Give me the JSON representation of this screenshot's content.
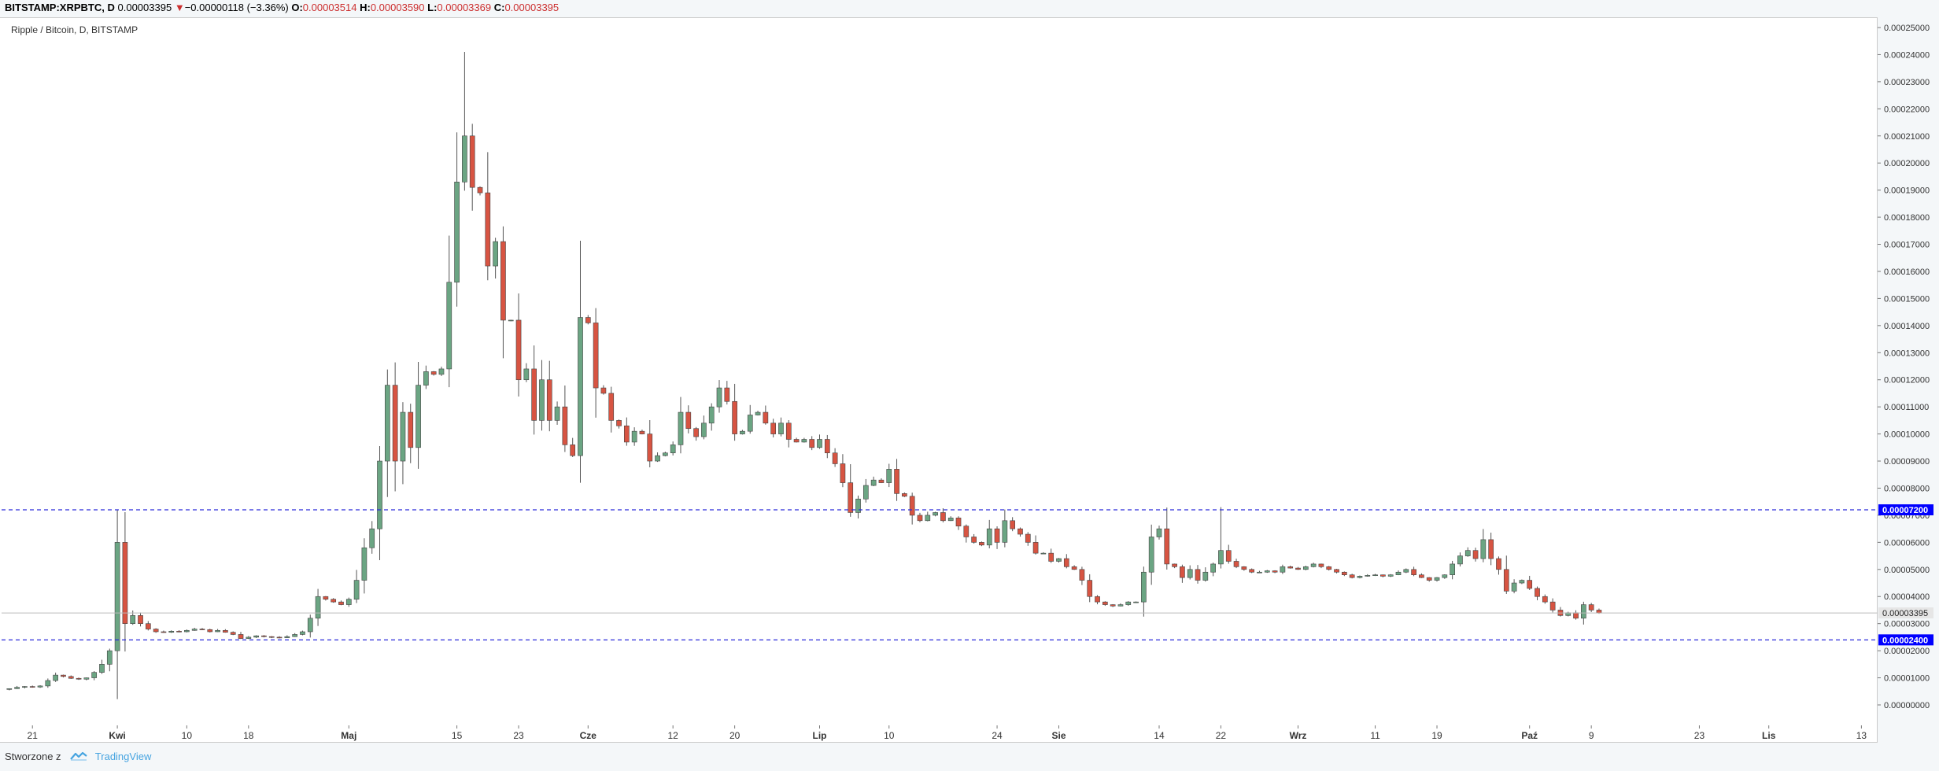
{
  "header": {
    "symbol": "BITSTAMP:XRPBTC, D",
    "last": "0.00003395",
    "change_arrow": "▼",
    "change": "−0.00000118 (−3.36%)",
    "o_label": "O:",
    "o": "0.00003514",
    "h_label": "H:",
    "h": "0.00003590",
    "l_label": "L:",
    "l": "0.00003369",
    "c_label": "C:",
    "c": "0.00003395"
  },
  "legend": "Ripple / Bitcoin, D, BITSTAMP",
  "footer": {
    "prefix": "Stworzone z",
    "brand": "TradingView"
  },
  "colors": {
    "up": "#6ba583",
    "down": "#d75442",
    "hline": "#2a2adb",
    "label_bg": "#0000ff"
  },
  "chart_data": {
    "type": "candlestick",
    "title": "Ripple / Bitcoin, D, BITSTAMP",
    "ylim": [
      0,
      0.00025
    ],
    "yticks": [
      "0.00025000",
      "0.00024000",
      "0.00023000",
      "0.00022000",
      "0.00021000",
      "0.00020000",
      "0.00019000",
      "0.00018000",
      "0.00017000",
      "0.00016000",
      "0.00015000",
      "0.00014000",
      "0.00013000",
      "0.00012000",
      "0.00011000",
      "0.00010000",
      "0.00009000",
      "0.00008000",
      "0.00007000",
      "0.00006000",
      "0.00005000",
      "0.00004000",
      "0.00003000",
      "0.00002000",
      "0.00001000",
      "0.00000000"
    ],
    "xticks": [
      {
        "label": "21",
        "day": 3
      },
      {
        "label": "Kwi",
        "day": 14
      },
      {
        "label": "10",
        "day": 23
      },
      {
        "label": "18",
        "day": 31
      },
      {
        "label": "Maj",
        "day": 44
      },
      {
        "label": "15",
        "day": 58
      },
      {
        "label": "23",
        "day": 66
      },
      {
        "label": "Cze",
        "day": 75
      },
      {
        "label": "12",
        "day": 86
      },
      {
        "label": "20",
        "day": 94
      },
      {
        "label": "Lip",
        "day": 105
      },
      {
        "label": "10",
        "day": 114
      },
      {
        "label": "24",
        "day": 128
      },
      {
        "label": "Sie",
        "day": 136
      },
      {
        "label": "14",
        "day": 149
      },
      {
        "label": "22",
        "day": 157
      },
      {
        "label": "Wrz",
        "day": 167
      },
      {
        "label": "11",
        "day": 177
      },
      {
        "label": "19",
        "day": 185
      },
      {
        "label": "Paź",
        "day": 197
      },
      {
        "label": "9",
        "day": 205
      },
      {
        "label": "23",
        "day": 219
      },
      {
        "label": "Lis",
        "day": 228
      },
      {
        "label": "13",
        "day": 240
      }
    ],
    "x_day_range": [
      -1,
      242
    ],
    "hlines": [
      {
        "value": 7.2e-05,
        "label": "0.00007200"
      },
      {
        "value": 2.4e-05,
        "label": "0.00002400"
      }
    ],
    "last_price": {
      "value": 3.395e-05,
      "label": "0.00003395"
    },
    "close": [
      6e-06,
      6.5e-06,
      6.8e-06,
      6.6e-06,
      7e-06,
      9e-06,
      1.1e-05,
      1.05e-05,
      9.8e-06,
      9.5e-06,
      1e-05,
      1.2e-05,
      1.5e-05,
      2e-05,
      6e-05,
      3e-05,
      3.3e-05,
      3e-05,
      2.8e-05,
      2.7e-05,
      2.68e-05,
      2.72e-05,
      2.7e-05,
      2.75e-05,
      2.8e-05,
      2.78e-05,
      2.7e-05,
      2.75e-05,
      2.68e-05,
      2.6e-05,
      2.45e-05,
      2.5e-05,
      2.55e-05,
      2.52e-05,
      2.5e-05,
      2.48e-05,
      2.52e-05,
      2.6e-05,
      2.7e-05,
      3.2e-05,
      4e-05,
      3.9e-05,
      3.8e-05,
      3.7e-05,
      3.9e-05,
      4.6e-05,
      5.8e-05,
      6.5e-05,
      9e-05,
      0.000118,
      9e-05,
      0.000108,
      9.5e-05,
      0.000118,
      0.000123,
      0.000122,
      0.000124,
      0.000156,
      0.000193,
      0.00021,
      0.000191,
      0.000189,
      0.000162,
      0.000171,
      0.000142,
      0.000142,
      0.00012,
      0.000124,
      0.000105,
      0.00012,
      0.000105,
      0.00011,
      9.6e-05,
      9.2e-05,
      0.000143,
      0.000141,
      0.000117,
      0.000115,
      0.000105,
      0.000103,
      9.7e-05,
      0.000101,
      0.0001,
      9e-05,
      9.2e-05,
      9.3e-05,
      9.6e-05,
      0.000108,
      0.000102,
      9.9e-05,
      0.000104,
      0.00011,
      0.000117,
      0.000112,
      0.0001,
      0.000101,
      0.000107,
      0.000108,
      0.000104,
      0.0001,
      0.000104,
      9.8e-05,
      9.7e-05,
      9.8e-05,
      9.5e-05,
      9.8e-05,
      9.3e-05,
      8.9e-05,
      8.2e-05,
      7.1e-05,
      7.6e-05,
      8.1e-05,
      8.3e-05,
      8.2e-05,
      8.7e-05,
      7.8e-05,
      7.7e-05,
      7e-05,
      6.8e-05,
      7e-05,
      7.1e-05,
      6.8e-05,
      6.9e-05,
      6.6e-05,
      6.2e-05,
      6e-05,
      5.9e-05,
      6.5e-05,
      6e-05,
      6.8e-05,
      6.5e-05,
      6.3e-05,
      6e-05,
      5.6e-05,
      5.6e-05,
      5.3e-05,
      5.4e-05,
      5.1e-05,
      5e-05,
      4.6e-05,
      4e-05,
      3.8e-05,
      3.7e-05,
      3.65e-05,
      3.7e-05,
      3.8e-05,
      3.8e-05,
      4.9e-05,
      6.2e-05,
      6.5e-05,
      5.2e-05,
      5.1e-05,
      4.7e-05,
      5e-05,
      4.6e-05,
      4.9e-05,
      5.2e-05,
      5.7e-05,
      5.3e-05,
      5.1e-05,
      5e-05,
      4.9e-05,
      4.9e-05,
      4.95e-05,
      4.9e-05,
      5.1e-05,
      5.05e-05,
      5e-05,
      5.1e-05,
      5.2e-05,
      5.1e-05,
      5e-05,
      4.9e-05,
      4.8e-05,
      4.7e-05,
      4.75e-05,
      4.78e-05,
      4.8e-05,
      4.75e-05,
      4.8e-05,
      4.9e-05,
      5e-05,
      4.8e-05,
      4.7e-05,
      4.6e-05,
      4.7e-05,
      4.8e-05,
      5.2e-05,
      5.5e-05,
      5.7e-05,
      5.4e-05,
      6.1e-05,
      5.4e-05,
      5e-05,
      4.2e-05,
      4.5e-05,
      4.6e-05,
      4.3e-05,
      4e-05,
      3.8e-05,
      3.5e-05,
      3.3e-05,
      3.4e-05,
      3.2e-05,
      3.7e-05,
      3.5e-05,
      3.39e-05
    ],
    "open_first": 5.8e-06
  }
}
